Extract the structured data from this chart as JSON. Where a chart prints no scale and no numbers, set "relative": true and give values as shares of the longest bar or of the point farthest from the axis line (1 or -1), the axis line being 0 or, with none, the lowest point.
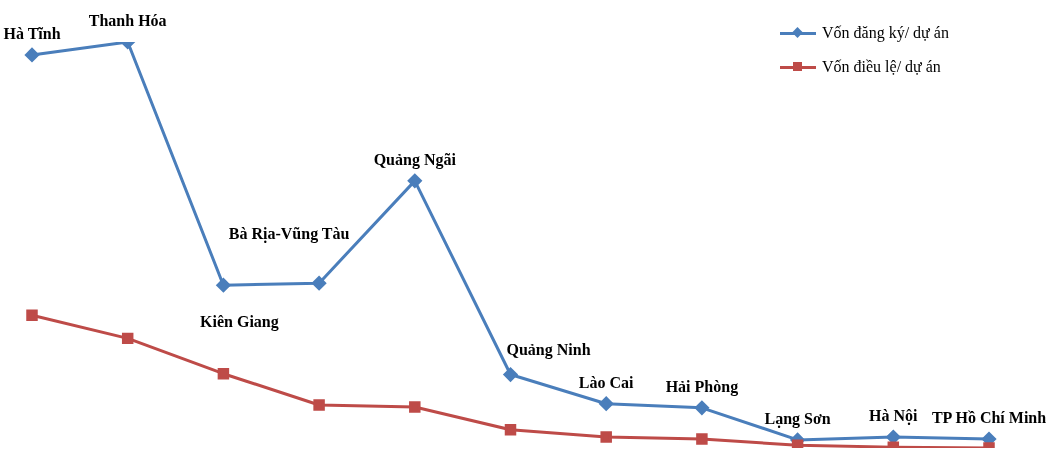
{
  "chart_data": {
    "type": "line",
    "relative": true,
    "legend": "top right",
    "categories": [
      "Hà Tĩnh",
      "Thanh Hóa",
      "Kiên Giang",
      "Bà Rịa-Vũng Tàu",
      "Quảng Ngãi",
      "Quảng Ninh",
      "Lào Cai",
      "Hải Phòng",
      "Lạng Sơn",
      "Hà Nội",
      "TP Hồ Chí Minh"
    ],
    "series": [
      {
        "name": "Vốn đăng ký/ dự án",
        "color": "#4a7ebb",
        "marker": "diamond",
        "values": [
          0.968,
          1.0,
          0.401,
          0.406,
          0.658,
          0.181,
          0.109,
          0.099,
          0.02,
          0.027,
          0.022
        ]
      },
      {
        "name": "Vốn điều lệ/ dự án",
        "color": "#be4b48",
        "marker": "square",
        "values": [
          0.327,
          0.27,
          0.183,
          0.106,
          0.101,
          0.045,
          0.027,
          0.022,
          0.007,
          0.002,
          0
        ]
      }
    ]
  }
}
